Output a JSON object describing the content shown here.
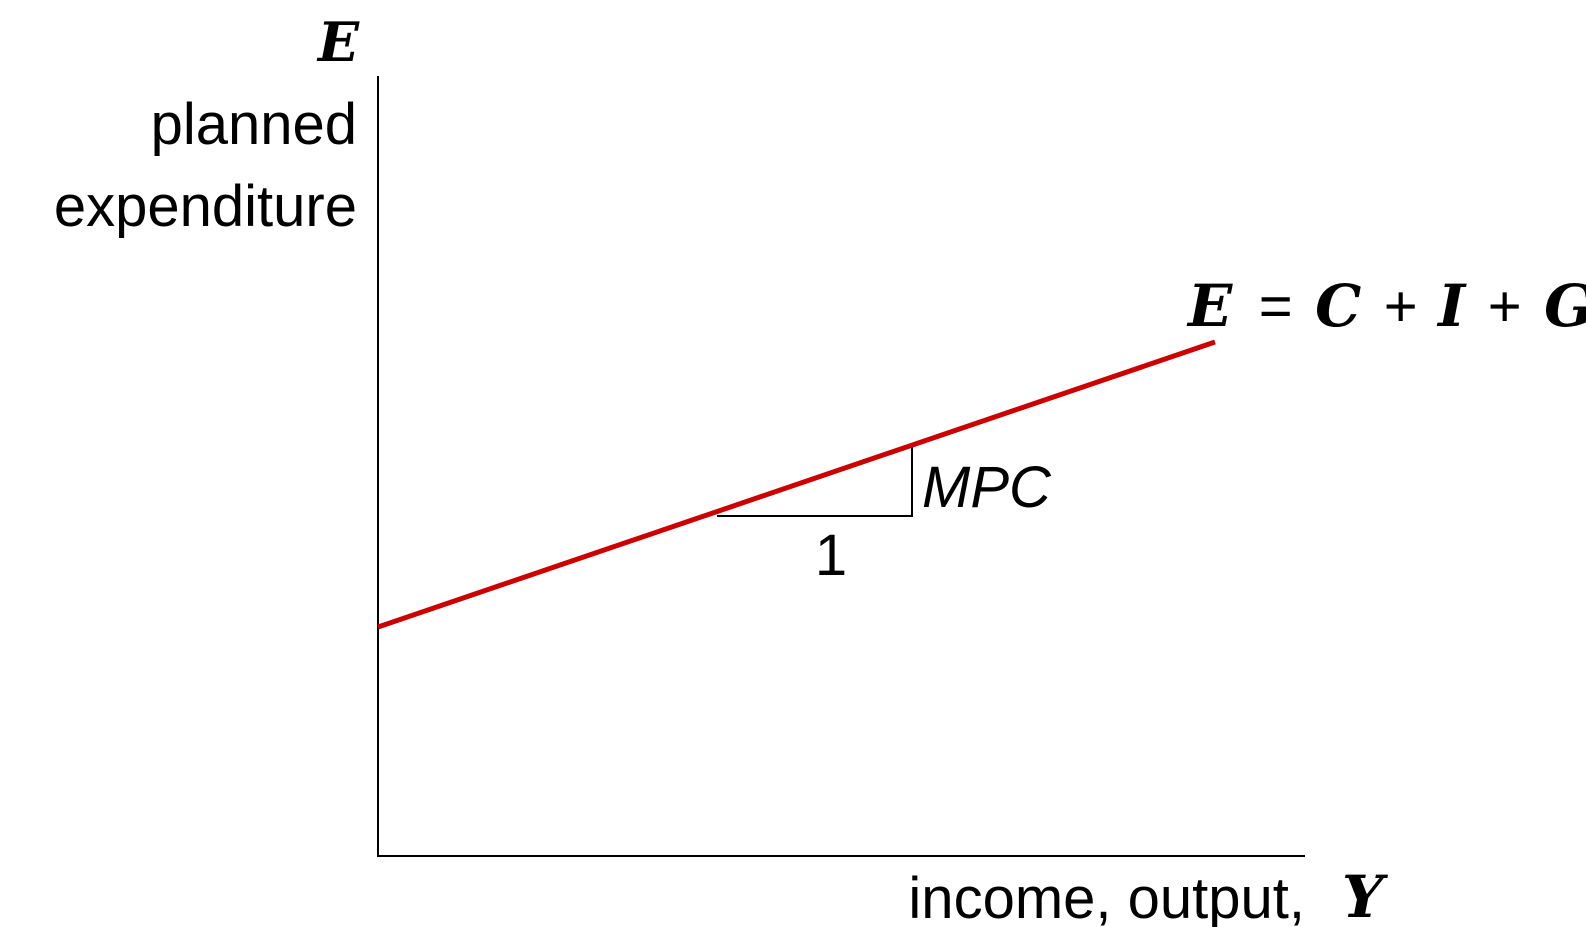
{
  "y_axis": {
    "symbol": "E",
    "label_line1": "planned",
    "label_line2": "expenditure"
  },
  "x_axis": {
    "label": "income, output,",
    "symbol": "Y"
  },
  "curve": {
    "color": "#CC0000",
    "label": {
      "lhs": "E",
      "eq": "=",
      "c": "C",
      "plus1": "+",
      "i": "I",
      "plus2": "+",
      "g": "G"
    }
  },
  "slope_triangle": {
    "run_label": "1",
    "rise_label": "MPC"
  }
}
